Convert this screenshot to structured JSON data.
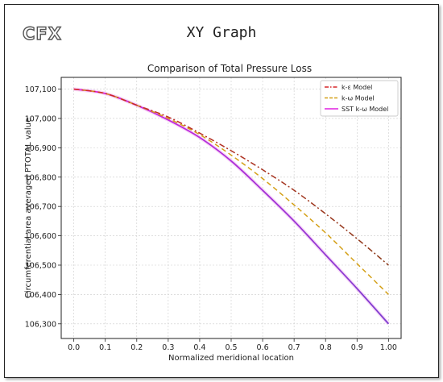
{
  "header": {
    "logo_text": "CFX",
    "app_title": "XY Graph"
  },
  "chart_data": {
    "type": "line",
    "title": "Comparison of Total Pressure Loss",
    "xlabel": "Normalized meridional location",
    "ylabel": "Circumferential area averaged PTOTAL value",
    "xlim": [
      -0.04,
      1.04
    ],
    "ylim": [
      106250,
      107140
    ],
    "x_ticks": [
      0.0,
      0.1,
      0.2,
      0.3,
      0.4,
      0.5,
      0.6,
      0.7,
      0.8,
      0.9,
      1.0
    ],
    "x_tick_labels": [
      "0.0",
      "0.1",
      "0.2",
      "0.3",
      "0.4",
      "0.5",
      "0.6",
      "0.7",
      "0.8",
      "0.9",
      "1.00"
    ],
    "y_ticks": [
      106300,
      106400,
      106500,
      106600,
      106700,
      106800,
      106900,
      107000,
      107100
    ],
    "y_tick_labels": [
      "106,300",
      "106,400",
      "106,500",
      "106,600",
      "106,700",
      "106,800",
      "106,900",
      "107,000",
      "107,100"
    ],
    "grid": true,
    "legend_position": "top-right",
    "x": [
      0.0,
      0.1,
      0.2,
      0.3,
      0.4,
      0.5,
      0.6,
      0.7,
      0.8,
      0.9,
      1.0
    ],
    "series": [
      {
        "name": "k-ε Model",
        "values": [
          107100,
          107085,
          107045,
          107005,
          106950,
          106890,
          106825,
          106755,
          106675,
          106590,
          106500
        ],
        "color": "#d62728",
        "color_end": "#8b3a1a",
        "style": "dashdot"
      },
      {
        "name": "k-ω Model",
        "values": [
          107100,
          107085,
          107045,
          107000,
          106945,
          106875,
          106795,
          106705,
          106610,
          106505,
          106400
        ],
        "color": "#d4a017",
        "style": "dashed"
      },
      {
        "name": "SST k-ω Model",
        "values": [
          107100,
          107085,
          107045,
          106995,
          106935,
          106855,
          106755,
          106650,
          106535,
          106420,
          106300
        ],
        "color": "#e020e0",
        "color_end": "#7d3fd0",
        "style": "solid"
      }
    ]
  }
}
